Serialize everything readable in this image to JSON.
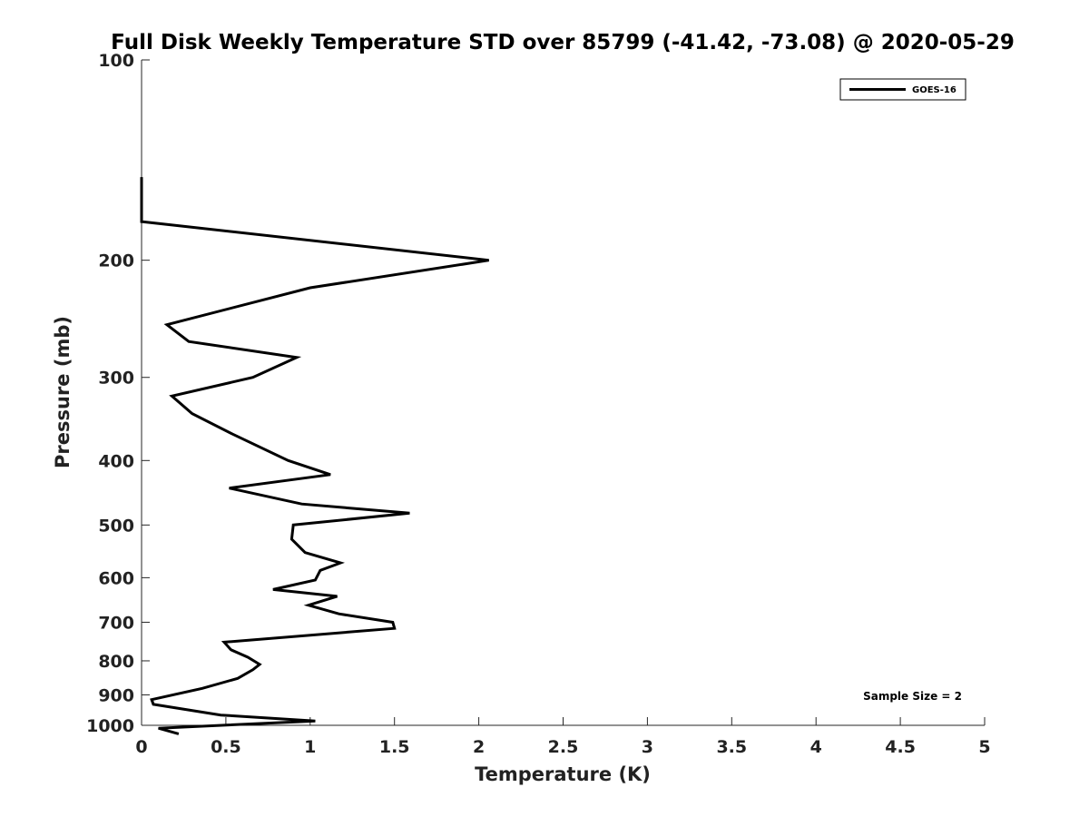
{
  "chart_data": {
    "type": "line",
    "title": "Full Disk Weekly Temperature STD over 85799 (-41.42, -73.08) @ 2020-05-29",
    "xlabel": "Temperature (K)",
    "ylabel": "Pressure (mb)",
    "xlim": [
      0,
      5
    ],
    "ylim": [
      100,
      1000
    ],
    "y_scale": "log",
    "y_reversed": true,
    "x_ticks": [
      "0",
      "0.5",
      "1",
      "1.5",
      "2",
      "2.5",
      "3",
      "3.5",
      "4",
      "4.5",
      "5"
    ],
    "y_ticks": [
      "100",
      "200",
      "300",
      "400",
      "500",
      "600",
      "700",
      "800",
      "900",
      "1000"
    ],
    "grid": false,
    "legend": {
      "position": "top-right",
      "entries": [
        "GOES-16"
      ]
    },
    "annotation": "Sample Size = 2",
    "series": [
      {
        "name": "GOES-16",
        "color": "#000000",
        "x": [
          0.0,
          0.0,
          0.0,
          2.06,
          1.0,
          0.15,
          0.28,
          0.92,
          0.66,
          0.18,
          0.3,
          0.54,
          0.87,
          1.12,
          0.52,
          0.95,
          1.59,
          0.9,
          0.89,
          0.97,
          1.18,
          1.06,
          1.03,
          0.78,
          1.16,
          0.99,
          1.17,
          1.49,
          1.5,
          0.49,
          0.53,
          0.63,
          0.7,
          0.66,
          0.57,
          0.36,
          0.06,
          0.07,
          0.47,
          1.03,
          0.1,
          0.22
        ],
        "y": [
          150,
          160,
          175,
          200,
          220,
          250,
          265,
          280,
          300,
          320,
          340,
          365,
          400,
          420,
          440,
          465,
          480,
          500,
          525,
          550,
          570,
          585,
          605,
          625,
          640,
          660,
          680,
          700,
          715,
          750,
          770,
          790,
          810,
          825,
          850,
          880,
          915,
          930,
          965,
          985,
          1010,
          1030
        ]
      }
    ]
  }
}
